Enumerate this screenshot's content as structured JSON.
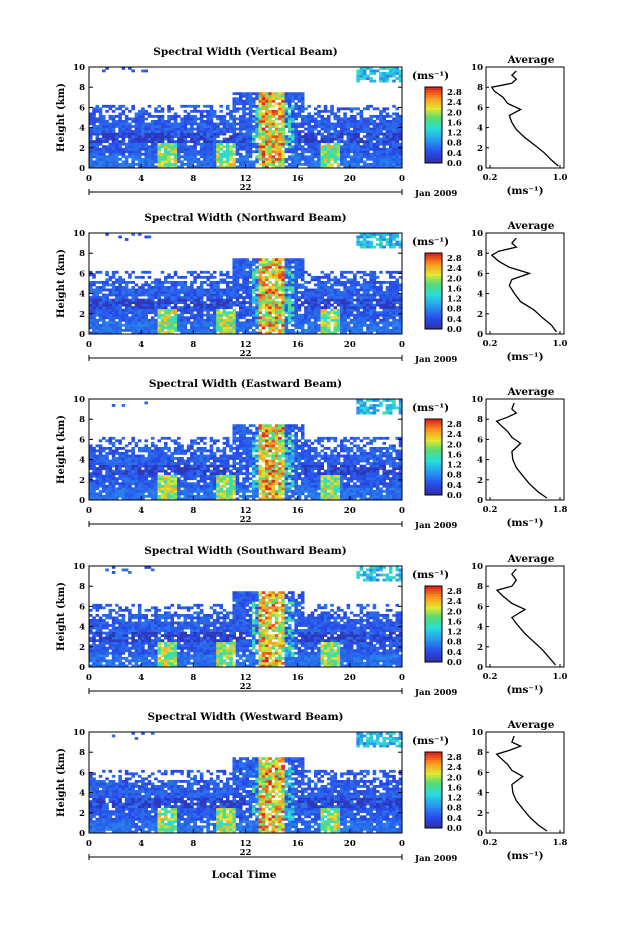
{
  "figure": {
    "xlabel": "Local Time",
    "date_label": "Jan 2009",
    "day_label": "22"
  },
  "chart_data": [
    {
      "type": "heatmap",
      "title": "Spectral Width (Vertical Beam)",
      "ylabel": "Height (km)",
      "xlim": [
        0,
        24
      ],
      "ylim": [
        0,
        10
      ],
      "x_ticks": [
        "0",
        "4",
        "8",
        "12",
        "16",
        "20",
        "0"
      ],
      "y_ticks": [
        "0",
        "2",
        "4",
        "6",
        "8",
        "10"
      ],
      "colorbar": {
        "unit": "(ms⁻¹)",
        "ticks": [
          "0.0",
          "0.4",
          "0.8",
          "1.2",
          "1.6",
          "2.0",
          "2.4",
          "2.8"
        ],
        "range": [
          0,
          3.0
        ]
      },
      "average": {
        "title": "Average",
        "xlabel": "(ms⁻¹)",
        "x_ticks": [
          "0.2",
          "1.0"
        ],
        "xlim": [
          0.2,
          1.0
        ],
        "y_ticks": [
          "0",
          "2",
          "4",
          "6",
          "8",
          "10"
        ],
        "profile": [
          [
            0.98,
            0.2
          ],
          [
            0.9,
            0.8
          ],
          [
            0.82,
            1.5
          ],
          [
            0.72,
            2.2
          ],
          [
            0.6,
            3.0
          ],
          [
            0.5,
            3.8
          ],
          [
            0.45,
            4.5
          ],
          [
            0.42,
            5.2
          ],
          [
            0.55,
            5.8
          ],
          [
            0.4,
            6.4
          ],
          [
            0.35,
            7.0
          ],
          [
            0.25,
            7.6
          ],
          [
            0.22,
            8.0
          ],
          [
            0.45,
            8.4
          ],
          [
            0.5,
            8.8
          ],
          [
            0.45,
            9.2
          ],
          [
            0.5,
            9.6
          ]
        ]
      },
      "features": {
        "cloud_top": 7.5,
        "convective_x": [
          13.5,
          14.5
        ],
        "secondary_x": [
          6,
          10.5,
          18.5
        ]
      }
    },
    {
      "type": "heatmap",
      "title": "Spectral Width (Northward Beam)",
      "ylabel": "Height (km)",
      "xlim": [
        0,
        24
      ],
      "ylim": [
        0,
        10
      ],
      "x_ticks": [
        "0",
        "4",
        "8",
        "12",
        "16",
        "20",
        "0"
      ],
      "y_ticks": [
        "0",
        "2",
        "4",
        "6",
        "8",
        "10"
      ],
      "colorbar": {
        "unit": "(ms⁻¹)",
        "ticks": [
          "0.0",
          "0.4",
          "0.8",
          "1.2",
          "1.6",
          "2.0",
          "2.4",
          "2.8"
        ],
        "range": [
          0,
          3.0
        ]
      },
      "average": {
        "title": "Average",
        "xlabel": "(ms⁻¹)",
        "x_ticks": [
          "0.2",
          "1.0"
        ],
        "xlim": [
          0.2,
          1.0
        ],
        "y_ticks": [
          "0",
          "2",
          "4",
          "6",
          "8",
          "10"
        ],
        "profile": [
          [
            0.96,
            0.2
          ],
          [
            0.9,
            0.9
          ],
          [
            0.8,
            1.6
          ],
          [
            0.7,
            2.4
          ],
          [
            0.55,
            3.2
          ],
          [
            0.48,
            4.0
          ],
          [
            0.42,
            4.8
          ],
          [
            0.45,
            5.4
          ],
          [
            0.65,
            6.0
          ],
          [
            0.42,
            6.6
          ],
          [
            0.3,
            7.2
          ],
          [
            0.22,
            7.8
          ],
          [
            0.3,
            8.2
          ],
          [
            0.5,
            8.6
          ],
          [
            0.45,
            9.0
          ],
          [
            0.5,
            9.5
          ]
        ]
      },
      "features": {
        "cloud_top": 7.5,
        "convective_x": [
          13.5,
          14.5
        ],
        "secondary_x": [
          6,
          10.5,
          18.5
        ]
      }
    },
    {
      "type": "heatmap",
      "title": "Spectral Width (Eastward Beam)",
      "ylabel": "Height (km)",
      "xlim": [
        0,
        24
      ],
      "ylim": [
        0,
        10
      ],
      "x_ticks": [
        "0",
        "4",
        "8",
        "12",
        "16",
        "20",
        "0"
      ],
      "y_ticks": [
        "0",
        "2",
        "4",
        "6",
        "8",
        "10"
      ],
      "colorbar": {
        "unit": "(ms⁻¹)",
        "ticks": [
          "0.0",
          "0.4",
          "0.8",
          "1.2",
          "1.6",
          "2.0",
          "2.4",
          "2.8"
        ],
        "range": [
          0,
          3.0
        ]
      },
      "average": {
        "title": "Average",
        "xlabel": "(ms⁻¹)",
        "x_ticks": [
          "0.2",
          "1.8"
        ],
        "xlim": [
          0.2,
          1.8
        ],
        "y_ticks": [
          "0",
          "2",
          "4",
          "6",
          "8",
          "10"
        ],
        "profile": [
          [
            1.5,
            0.2
          ],
          [
            1.3,
            0.8
          ],
          [
            1.1,
            1.6
          ],
          [
            0.95,
            2.4
          ],
          [
            0.8,
            3.2
          ],
          [
            0.72,
            4.0
          ],
          [
            0.7,
            4.8
          ],
          [
            0.9,
            5.6
          ],
          [
            0.7,
            6.2
          ],
          [
            0.6,
            6.8
          ],
          [
            0.45,
            7.4
          ],
          [
            0.35,
            7.8
          ],
          [
            0.6,
            8.2
          ],
          [
            0.8,
            8.6
          ],
          [
            0.7,
            9.0
          ],
          [
            0.75,
            9.6
          ]
        ]
      },
      "features": {
        "cloud_top": 7.5,
        "convective_x": [
          13.5,
          14.5
        ],
        "secondary_x": [
          6,
          10.5,
          18.5
        ]
      }
    },
    {
      "type": "heatmap",
      "title": "Spectral Width (Southward Beam)",
      "ylabel": "Height (km)",
      "xlim": [
        0,
        24
      ],
      "ylim": [
        0,
        10
      ],
      "x_ticks": [
        "0",
        "4",
        "8",
        "12",
        "16",
        "20",
        "0"
      ],
      "y_ticks": [
        "0",
        "2",
        "4",
        "6",
        "8",
        "10"
      ],
      "colorbar": {
        "unit": "(ms⁻¹)",
        "ticks": [
          "0.0",
          "0.4",
          "0.8",
          "1.2",
          "1.6",
          "2.0",
          "2.4",
          "2.8"
        ],
        "range": [
          0,
          3.0
        ]
      },
      "average": {
        "title": "Average",
        "xlabel": "(ms⁻¹)",
        "x_ticks": [
          "0.2",
          "1.0"
        ],
        "xlim": [
          0.2,
          1.0
        ],
        "y_ticks": [
          "0",
          "2",
          "4",
          "6",
          "8",
          "10"
        ],
        "profile": [
          [
            0.95,
            0.2
          ],
          [
            0.88,
            0.9
          ],
          [
            0.8,
            1.7
          ],
          [
            0.7,
            2.5
          ],
          [
            0.6,
            3.3
          ],
          [
            0.52,
            4.1
          ],
          [
            0.45,
            4.9
          ],
          [
            0.6,
            5.7
          ],
          [
            0.45,
            6.3
          ],
          [
            0.35,
            7.0
          ],
          [
            0.28,
            7.6
          ],
          [
            0.45,
            8.0
          ],
          [
            0.5,
            8.6
          ],
          [
            0.45,
            9.2
          ],
          [
            0.5,
            9.7
          ]
        ]
      },
      "features": {
        "cloud_top": 7.5,
        "convective_x": [
          13.5,
          14.5
        ],
        "secondary_x": [
          6,
          10.5,
          18.5
        ]
      }
    },
    {
      "type": "heatmap",
      "title": "Spectral Width (Westward Beam)",
      "ylabel": "Height (km)",
      "xlim": [
        0,
        24
      ],
      "ylim": [
        0,
        10
      ],
      "x_ticks": [
        "0",
        "4",
        "8",
        "12",
        "16",
        "20",
        "0"
      ],
      "y_ticks": [
        "0",
        "2",
        "4",
        "6",
        "8",
        "10"
      ],
      "colorbar": {
        "unit": "(ms⁻¹)",
        "ticks": [
          "0.0",
          "0.4",
          "0.8",
          "1.2",
          "1.6",
          "2.0",
          "2.4",
          "2.8"
        ],
        "range": [
          0,
          3.0
        ]
      },
      "average": {
        "title": "Average",
        "xlabel": "(ms⁻¹)",
        "x_ticks": [
          "0.2",
          "1.8"
        ],
        "xlim": [
          0.2,
          1.8
        ],
        "y_ticks": [
          "0",
          "2",
          "4",
          "6",
          "8",
          "10"
        ],
        "profile": [
          [
            1.5,
            0.2
          ],
          [
            1.3,
            0.8
          ],
          [
            1.1,
            1.6
          ],
          [
            0.95,
            2.4
          ],
          [
            0.8,
            3.2
          ],
          [
            0.72,
            4.0
          ],
          [
            0.7,
            4.8
          ],
          [
            0.95,
            5.6
          ],
          [
            0.7,
            6.2
          ],
          [
            0.6,
            6.8
          ],
          [
            0.45,
            7.4
          ],
          [
            0.35,
            7.8
          ],
          [
            0.65,
            8.2
          ],
          [
            0.9,
            8.6
          ],
          [
            0.7,
            9.0
          ],
          [
            0.75,
            9.6
          ]
        ]
      },
      "features": {
        "cloud_top": 7.5,
        "convective_x": [
          13.5,
          14.5
        ],
        "secondary_x": [
          6,
          10.5,
          18.5
        ]
      }
    }
  ]
}
